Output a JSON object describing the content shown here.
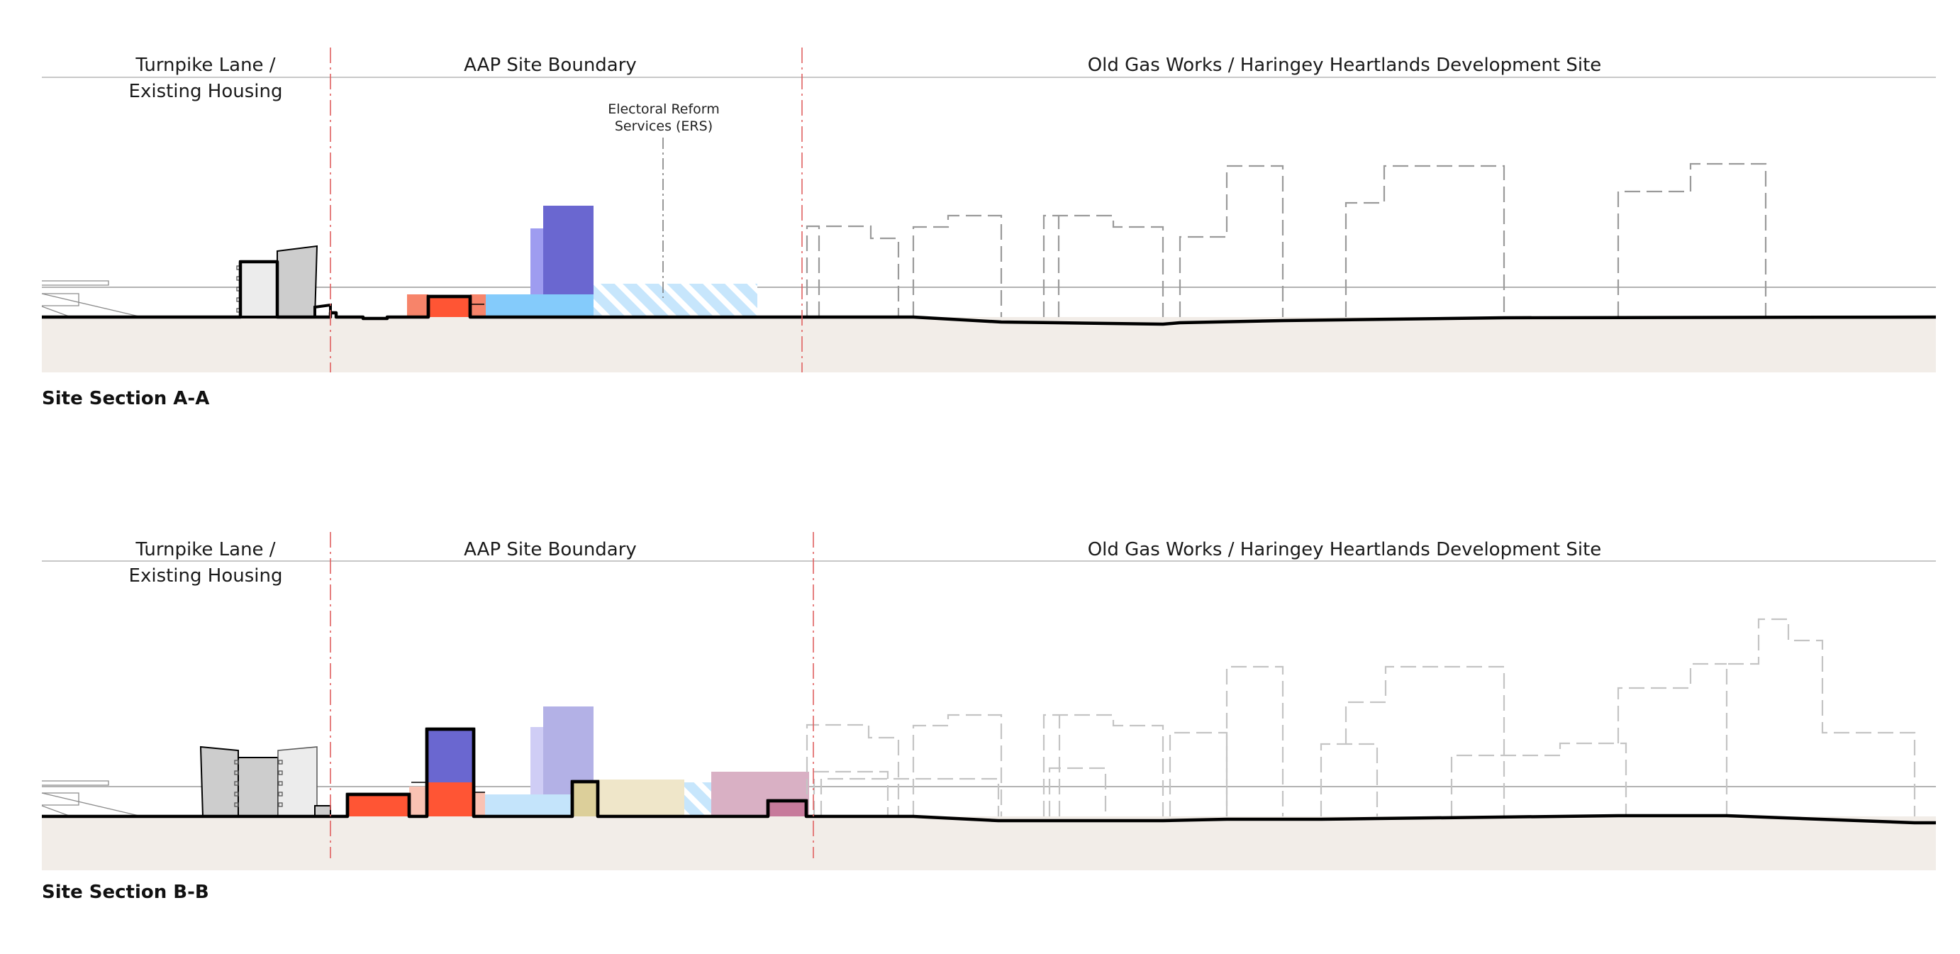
{
  "section_a": {
    "zone_left_line1": "Turnpike Lane /",
    "zone_left_line2": "Existing Housing",
    "zone_mid": "AAP Site Boundary",
    "zone_right": "Old Gas Works / Haringey Heartlands Development Site",
    "ers_line1": "Electoral Reform",
    "ers_line2": "Services (ERS)",
    "caption": "Site Section A-A"
  },
  "section_b": {
    "zone_left_line1": "Turnpike Lane /",
    "zone_left_line2": "Existing Housing",
    "zone_mid": "AAP Site Boundary",
    "zone_right": "Old Gas Works / Haringey Heartlands Development Site",
    "caption": "Site Section B-B"
  },
  "colors": {
    "ground_fill": "#f2ede8",
    "boundary_line": "#e06060",
    "orange_red": "#ff5534",
    "salmon": "#f7846a",
    "light_salmon": "#f9c2b3",
    "sky_blue": "#84cbfb",
    "light_blue": "#c4e4fb",
    "violet_blue": "#6a67d0",
    "lavender": "#9e9cf0",
    "pale_lavender": "#b3b1e6",
    "sand": "#efe6c9",
    "khaki": "#dccf9a",
    "mauve": "#d9b0c4",
    "dark_mauve": "#c77a9b",
    "existing_grey": "#cdcdcd",
    "existing_light_grey": "#ececec"
  }
}
